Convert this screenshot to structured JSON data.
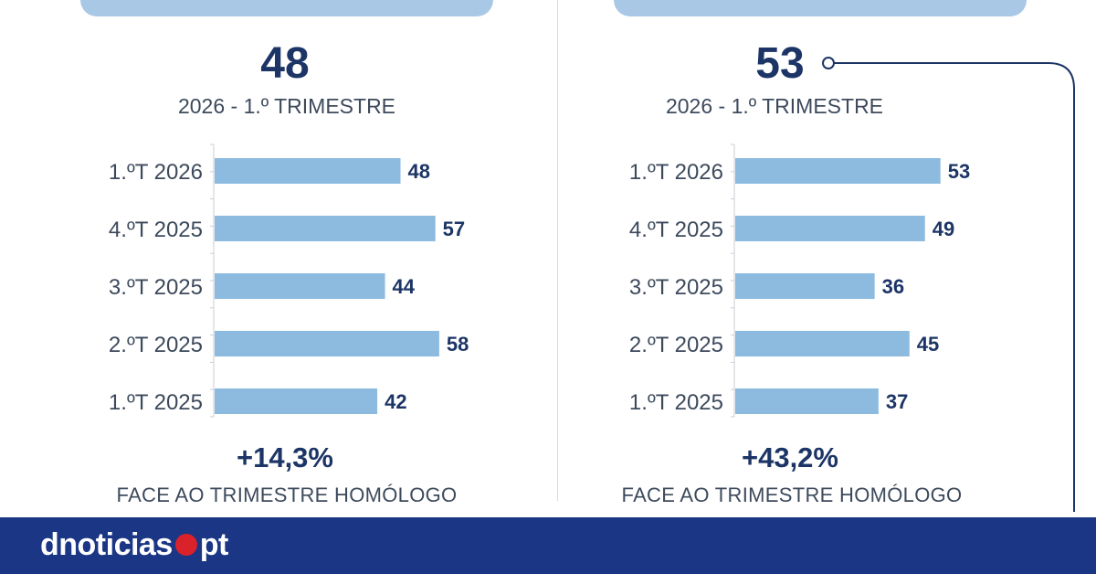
{
  "colors": {
    "bar": "#8dbbe0",
    "value": "#1c3566",
    "label": "#3d4a5c",
    "header": "#a9c8e6",
    "footer": "#1a3685",
    "logo_dot": "#d9222a"
  },
  "panels": [
    {
      "big_value": "48",
      "period": "2026 - 1.º TRIMESTRE",
      "change": "+14,3%",
      "change_label": "FACE AO TRIMESTRE HOMÓLOGO"
    },
    {
      "big_value": "53",
      "period": "2026 - 1.º TRIMESTRE",
      "change": "+43,2%",
      "change_label": "FACE AO TRIMESTRE HOMÓLOGO"
    }
  ],
  "chart_data": [
    {
      "type": "bar",
      "orientation": "horizontal",
      "categories": [
        "1.ºT 2026",
        "4.ºT 2025",
        "3.ºT 2025",
        "2.ºT 2025",
        "1.ºT 2025"
      ],
      "values": [
        48,
        57,
        44,
        58,
        42
      ],
      "value_labels": [
        "48",
        "57",
        "44",
        "58",
        "42"
      ],
      "xlim": [
        0,
        60
      ]
    },
    {
      "type": "bar",
      "orientation": "horizontal",
      "categories": [
        "1.ºT 2026",
        "4.ºT 2025",
        "3.ºT 2025",
        "2.ºT 2025",
        "1.ºT 2025"
      ],
      "values": [
        53,
        49,
        36,
        45,
        37
      ],
      "value_labels": [
        "53",
        "49",
        "36",
        "45",
        "37"
      ],
      "xlim": [
        0,
        60
      ]
    }
  ],
  "footer": {
    "logo_left": "dnoticias",
    "logo_right": "pt"
  }
}
